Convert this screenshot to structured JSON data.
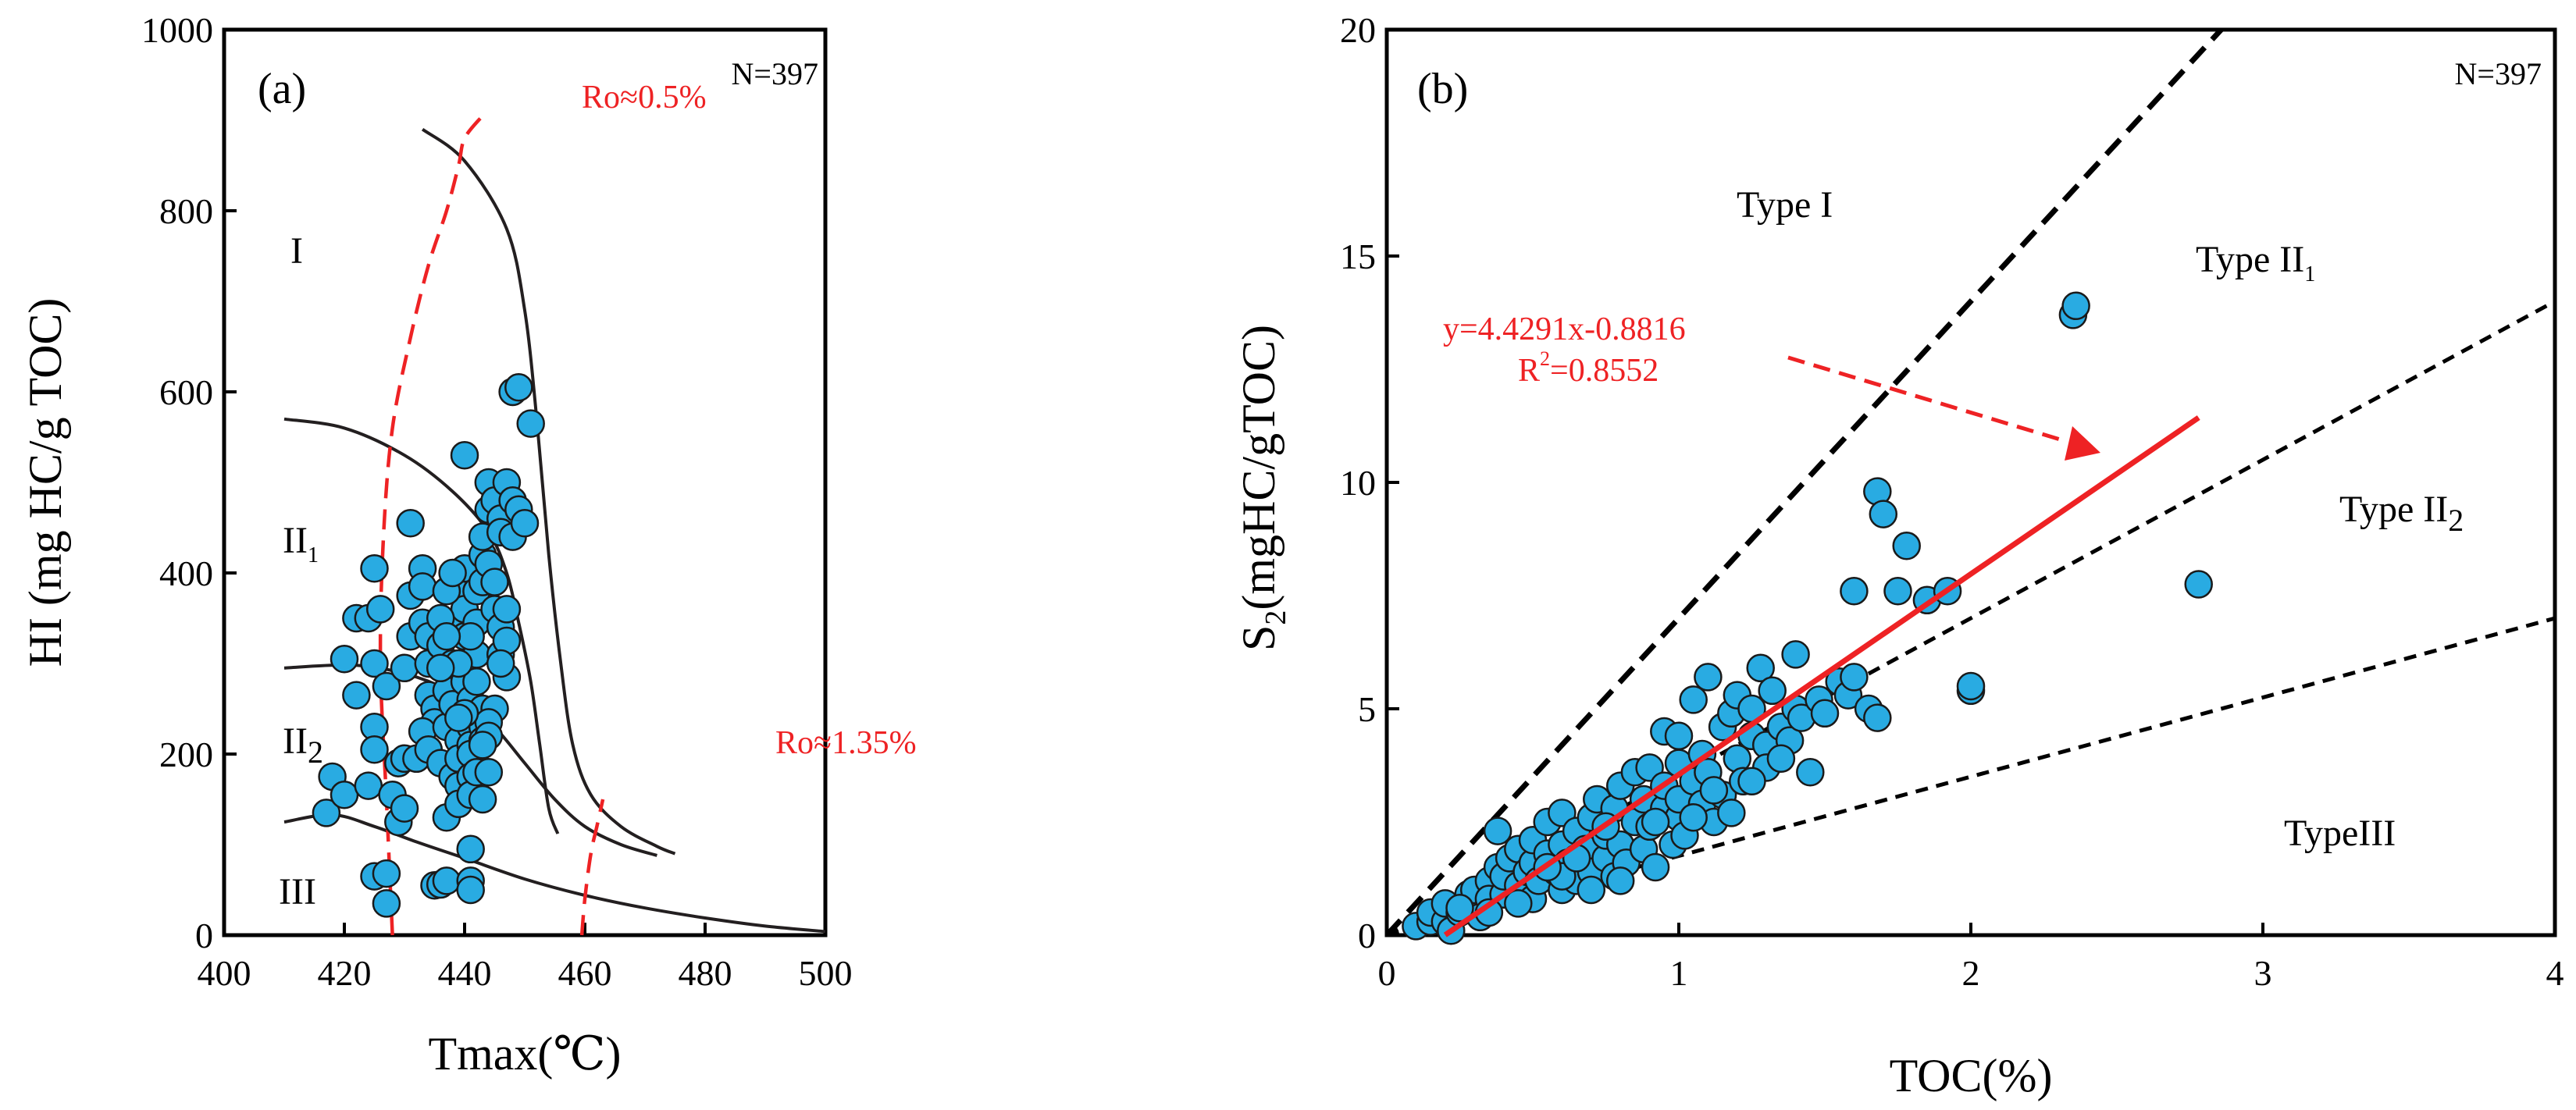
{
  "chart_data": [
    {
      "type": "scatter",
      "panel_label": "(a)",
      "sample_count_label": "N=397",
      "xlabel": "Tmax(℃)",
      "ylabel": "HI (mg HC/g TOC)",
      "xlim": [
        400,
        500
      ],
      "ylim": [
        0,
        1000
      ],
      "x_ticks": [
        "400",
        "420",
        "440",
        "460",
        "480",
        "500"
      ],
      "y_ticks": [
        "0",
        "200",
        "400",
        "600",
        "800",
        "1000"
      ],
      "region_labels": {
        "type_I": {
          "base": "I",
          "sub": ""
        },
        "type_II1": {
          "base": "II",
          "sub": "1"
        },
        "type_II2": {
          "base": "II",
          "sub": "2"
        },
        "type_III": {
          "base": "III",
          "sub": ""
        }
      },
      "ro_labels": {
        "ro_05": "Ro≈0.5%",
        "ro_135": "Ro≈1.35%"
      },
      "boundary_curves": [
        {
          "name": "I / II1 boundary",
          "points": [
            [
              433,
              890
            ],
            [
              440,
              855
            ],
            [
              447,
              780
            ],
            [
              450,
              690
            ],
            [
              452,
              570
            ],
            [
              454,
              420
            ],
            [
              456,
              300
            ],
            [
              458,
              210
            ],
            [
              461,
              155
            ],
            [
              466,
              120
            ],
            [
              472,
              98
            ],
            [
              475,
              90
            ]
          ]
        },
        {
          "name": "II1 / II2 boundary",
          "points": [
            [
              410,
              570
            ],
            [
              420,
              560
            ],
            [
              430,
              530
            ],
            [
              438,
              490
            ],
            [
              444,
              445
            ],
            [
              447,
              400
            ],
            [
              449,
              345
            ],
            [
              451,
              280
            ],
            [
              452.5,
              210
            ],
            [
              454,
              140
            ],
            [
              455.5,
              112
            ]
          ]
        },
        {
          "name": "II2 / III boundary",
          "points": [
            [
              410,
              295
            ],
            [
              422,
              298
            ],
            [
              432,
              285
            ],
            [
              440,
              260
            ],
            [
              445,
              230
            ],
            [
              450,
              190
            ],
            [
              455,
              150
            ],
            [
              460,
              120
            ],
            [
              466,
              100
            ],
            [
              472,
              88
            ]
          ]
        },
        {
          "name": "III lower boundary",
          "points": [
            [
              410,
              125
            ],
            [
              418,
              133
            ],
            [
              425,
              120
            ],
            [
              432,
              103
            ],
            [
              440,
              85
            ],
            [
              450,
              62
            ],
            [
              460,
              44
            ],
            [
              470,
              30
            ],
            [
              480,
              19
            ],
            [
              490,
              10
            ],
            [
              500,
              4
            ]
          ]
        }
      ],
      "ro_lines": [
        {
          "name": "Ro 0.5%",
          "points": [
            [
              428,
              0
            ],
            [
              427,
              150
            ],
            [
              426,
              300
            ],
            [
              426.5,
              440
            ],
            [
              428,
              560
            ],
            [
              431,
              660
            ],
            [
              434,
              740
            ],
            [
              437,
              800
            ],
            [
              439,
              850
            ],
            [
              440,
              880
            ],
            [
              443,
              905
            ]
          ]
        },
        {
          "name": "Ro 1.35%",
          "points": [
            [
              459.5,
              0
            ],
            [
              460,
              40
            ],
            [
              461,
              90
            ],
            [
              462,
              120
            ],
            [
              463,
              150
            ]
          ]
        }
      ],
      "points": [
        [
          417,
          135
        ],
        [
          418,
          175
        ],
        [
          420,
          155
        ],
        [
          420,
          305
        ],
        [
          422,
          350
        ],
        [
          422,
          265
        ],
        [
          424,
          350
        ],
        [
          425,
          405
        ],
        [
          425,
          300
        ],
        [
          425,
          230
        ],
        [
          425,
          205
        ],
        [
          424,
          165
        ],
        [
          425,
          65
        ],
        [
          427,
          68
        ],
        [
          427,
          35
        ],
        [
          426,
          360
        ],
        [
          427,
          275
        ],
        [
          428,
          155
        ],
        [
          429,
          125
        ],
        [
          429,
          190
        ],
        [
          430,
          140
        ],
        [
          430,
          195
        ],
        [
          430,
          295
        ],
        [
          431,
          330
        ],
        [
          431,
          375
        ],
        [
          431,
          455
        ],
        [
          433,
          405
        ],
        [
          433,
          385
        ],
        [
          433,
          345
        ],
        [
          434,
          330
        ],
        [
          434,
          300
        ],
        [
          434,
          265
        ],
        [
          435,
          250
        ],
        [
          435,
          235
        ],
        [
          433,
          225
        ],
        [
          432,
          195
        ],
        [
          434,
          205
        ],
        [
          436,
          190
        ],
        [
          435,
          55
        ],
        [
          436,
          56
        ],
        [
          437,
          60
        ],
        [
          437,
          130
        ],
        [
          438,
          175
        ],
        [
          437,
          230
        ],
        [
          437,
          270
        ],
        [
          436,
          320
        ],
        [
          438,
          345
        ],
        [
          438,
          300
        ],
        [
          438,
          255
        ],
        [
          439,
          215
        ],
        [
          439,
          195
        ],
        [
          439,
          165
        ],
        [
          439,
          145
        ],
        [
          440,
          385
        ],
        [
          440,
          405
        ],
        [
          440,
          360
        ],
        [
          440,
          330
        ],
        [
          440,
          300
        ],
        [
          440,
          280
        ],
        [
          441,
          260
        ],
        [
          441,
          230
        ],
        [
          441,
          210
        ],
        [
          441,
          200
        ],
        [
          441,
          175
        ],
        [
          441,
          155
        ],
        [
          442,
          180
        ],
        [
          440,
          530
        ],
        [
          442,
          380
        ],
        [
          442,
          345
        ],
        [
          442,
          310
        ],
        [
          442,
          280
        ],
        [
          443,
          250
        ],
        [
          443,
          230
        ],
        [
          443,
          215
        ],
        [
          444,
          180
        ],
        [
          443,
          150
        ],
        [
          441,
          60
        ],
        [
          441,
          50
        ],
        [
          441,
          95
        ],
        [
          437,
          380
        ],
        [
          438,
          400
        ],
        [
          443,
          390
        ],
        [
          443,
          420
        ],
        [
          443,
          440
        ],
        [
          444,
          470
        ],
        [
          444,
          500
        ],
        [
          445,
          480
        ],
        [
          446,
          460
        ],
        [
          446,
          445
        ],
        [
          447,
          500
        ],
        [
          448,
          440
        ],
        [
          448,
          480
        ],
        [
          444,
          410
        ],
        [
          445,
          390
        ],
        [
          445,
          360
        ],
        [
          446,
          340
        ],
        [
          446,
          310
        ],
        [
          447,
          285
        ],
        [
          447,
          360
        ],
        [
          447,
          325
        ],
        [
          446,
          300
        ],
        [
          445,
          250
        ],
        [
          444,
          235
        ],
        [
          444,
          220
        ],
        [
          443,
          210
        ],
        [
          441,
          330
        ],
        [
          439,
          300
        ],
        [
          440,
          245
        ],
        [
          439,
          240
        ],
        [
          436,
          295
        ],
        [
          436,
          350
        ],
        [
          437,
          330
        ],
        [
          448,
          600
        ],
        [
          449,
          605
        ],
        [
          451,
          565
        ],
        [
          449,
          470
        ],
        [
          450,
          455
        ]
      ]
    },
    {
      "type": "scatter",
      "panel_label": "(b)",
      "sample_count_label": "N=397",
      "xlabel": "TOC(%)",
      "ylabel": {
        "base_before": "S",
        "sub": "2",
        "base_after": "(mgHC/gTOC)"
      },
      "xlim": [
        0,
        4
      ],
      "ylim": [
        0,
        20
      ],
      "x_ticks": [
        "0",
        "1",
        "2",
        "3",
        "4"
      ],
      "y_ticks": [
        "0",
        "5",
        "10",
        "15",
        "20"
      ],
      "region_labels": {
        "type_I": {
          "base": "Type I",
          "sub": ""
        },
        "type_II1": {
          "base": "Type II",
          "sub": "1"
        },
        "type_II2": {
          "base": "Type II",
          "sub": "2"
        },
        "type_III": {
          "base": "TypeIII",
          "sub": ""
        }
      },
      "regression": {
        "equation": "y=4.4291x-0.8816",
        "r2_prefix": "R",
        "r2_sup": "2",
        "r2_value": "=0.8552",
        "slope": 4.4291,
        "intercept": -0.8816,
        "x_range": [
          0.2,
          2.78
        ],
        "color": "#ee2224"
      },
      "type_boundaries": [
        {
          "name": "I / II1",
          "slope": 7.0,
          "style": "heavy-dash"
        },
        {
          "name": "II1 / II2",
          "slope": 3.5,
          "style": "dash"
        },
        {
          "name": "II2 / III",
          "slope": 1.75,
          "style": "dash"
        }
      ],
      "points": [
        [
          0.1,
          0.2
        ],
        [
          0.15,
          0.3
        ],
        [
          0.15,
          0.5
        ],
        [
          0.2,
          0.3
        ],
        [
          0.2,
          0.7
        ],
        [
          0.22,
          0.1
        ],
        [
          0.25,
          0.5
        ],
        [
          0.28,
          0.9
        ],
        [
          0.3,
          0.6
        ],
        [
          0.3,
          1.0
        ],
        [
          0.32,
          0.4
        ],
        [
          0.35,
          1.2
        ],
        [
          0.35,
          0.8
        ],
        [
          0.38,
          1.5
        ],
        [
          0.38,
          2.3
        ],
        [
          0.4,
          0.9
        ],
        [
          0.4,
          1.3
        ],
        [
          0.42,
          1.7
        ],
        [
          0.45,
          1.1
        ],
        [
          0.45,
          1.9
        ],
        [
          0.48,
          1.4
        ],
        [
          0.5,
          0.8
        ],
        [
          0.5,
          1.6
        ],
        [
          0.5,
          2.1
        ],
        [
          0.52,
          1.2
        ],
        [
          0.55,
          1.8
        ],
        [
          0.55,
          2.5
        ],
        [
          0.58,
          1.4
        ],
        [
          0.6,
          1.0
        ],
        [
          0.6,
          2.0
        ],
        [
          0.6,
          2.7
        ],
        [
          0.62,
          1.6
        ],
        [
          0.65,
          1.2
        ],
        [
          0.65,
          2.3
        ],
        [
          0.68,
          1.9
        ],
        [
          0.7,
          1.4
        ],
        [
          0.7,
          2.6
        ],
        [
          0.72,
          3.0
        ],
        [
          0.75,
          1.7
        ],
        [
          0.75,
          2.2
        ],
        [
          0.78,
          1.3
        ],
        [
          0.78,
          2.8
        ],
        [
          0.8,
          3.3
        ],
        [
          0.8,
          2.0
        ],
        [
          0.82,
          1.6
        ],
        [
          0.85,
          2.5
        ],
        [
          0.85,
          3.6
        ],
        [
          0.88,
          1.9
        ],
        [
          0.88,
          3.0
        ],
        [
          0.9,
          2.4
        ],
        [
          0.9,
          3.7
        ],
        [
          0.92,
          1.5
        ],
        [
          0.95,
          2.8
        ],
        [
          0.95,
          3.3
        ],
        [
          0.95,
          4.5
        ],
        [
          0.98,
          2.0
        ],
        [
          1.0,
          2.6
        ],
        [
          1.0,
          3.0
        ],
        [
          1.0,
          3.8
        ],
        [
          1.0,
          4.4
        ],
        [
          1.02,
          2.2
        ],
        [
          1.05,
          3.4
        ],
        [
          1.05,
          5.2
        ],
        [
          1.08,
          2.9
        ],
        [
          1.08,
          4.0
        ],
        [
          1.1,
          3.6
        ],
        [
          1.1,
          5.7
        ],
        [
          1.12,
          2.5
        ],
        [
          1.15,
          4.6
        ],
        [
          1.15,
          3.1
        ],
        [
          1.18,
          2.7
        ],
        [
          1.18,
          4.9
        ],
        [
          1.2,
          3.9
        ],
        [
          1.2,
          5.3
        ],
        [
          1.22,
          3.4
        ],
        [
          1.25,
          4.4
        ],
        [
          1.25,
          5.0
        ],
        [
          1.28,
          5.9
        ],
        [
          1.3,
          4.2
        ],
        [
          1.3,
          3.7
        ],
        [
          1.32,
          5.4
        ],
        [
          1.35,
          4.6
        ],
        [
          1.38,
          4.3
        ],
        [
          1.4,
          5.0
        ],
        [
          1.4,
          6.2
        ],
        [
          1.42,
          4.8
        ],
        [
          1.45,
          3.6
        ],
        [
          1.48,
          5.2
        ],
        [
          1.5,
          4.9
        ],
        [
          1.55,
          5.6
        ],
        [
          1.58,
          5.3
        ],
        [
          1.6,
          5.7
        ],
        [
          1.6,
          7.6
        ],
        [
          1.65,
          5.0
        ],
        [
          1.68,
          4.8
        ],
        [
          1.68,
          9.8
        ],
        [
          1.7,
          9.3
        ],
        [
          1.75,
          7.6
        ],
        [
          1.78,
          8.6
        ],
        [
          1.85,
          7.4
        ],
        [
          1.92,
          7.6
        ],
        [
          2.0,
          5.4
        ],
        [
          2.0,
          5.5
        ],
        [
          2.35,
          13.7
        ],
        [
          2.36,
          13.9
        ],
        [
          2.78,
          7.75
        ],
        [
          0.25,
          0.6
        ],
        [
          0.35,
          0.5
        ],
        [
          0.45,
          0.7
        ],
        [
          0.6,
          1.3
        ],
        [
          0.7,
          1.0
        ],
        [
          0.8,
          1.2
        ],
        [
          0.92,
          2.5
        ],
        [
          1.05,
          2.6
        ],
        [
          1.12,
          3.2
        ],
        [
          1.25,
          3.4
        ],
        [
          1.35,
          3.9
        ],
        [
          0.55,
          1.5
        ],
        [
          0.65,
          1.7
        ],
        [
          0.75,
          2.4
        ]
      ]
    }
  ]
}
